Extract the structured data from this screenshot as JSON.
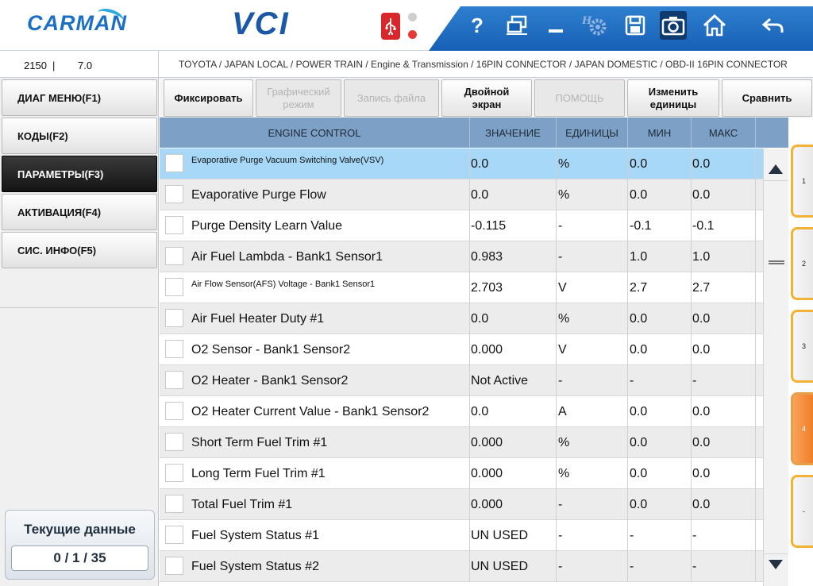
{
  "header": {
    "logo": "CARMAN",
    "app_title": "VCI",
    "toolbar_icons": [
      "usb-icon",
      "help-icon",
      "window-icon",
      "minimize-icon",
      "settings-icon",
      "save-icon",
      "camera-icon",
      "home-icon",
      "back-icon"
    ],
    "help_label": "?"
  },
  "info": {
    "code": "2150",
    "separator": "|",
    "version": "7.0",
    "breadcrumb": "TOYOTA / JAPAN LOCAL / POWER TRAIN / Engine & Transmission / 16PIN CONNECTOR / JAPAN DOMESTIC / OBD-II 16PIN CONNECTOR"
  },
  "nav": {
    "items": [
      {
        "label": "ДИАГ МЕНЮ(F1)",
        "active": false
      },
      {
        "label": "КОДЫ(F2)",
        "active": false
      },
      {
        "label": "ПАРАМЕТРЫ(F3)",
        "active": true
      },
      {
        "label": "АКТИВАЦИЯ(F4)",
        "active": false
      },
      {
        "label": "СИС. ИНФО(F5)",
        "active": false
      }
    ],
    "current_title": "Текущие данные",
    "current_count": "0 / 1 / 35"
  },
  "actions": {
    "fix": "Фиксировать",
    "graph_line1": "Графический",
    "graph_line2": "режим",
    "record": "Запись файла",
    "double_line1": "Двойной",
    "double_line2": "экран",
    "help": "ПОМОЩЬ",
    "units_line1": "Изменить",
    "units_line2": "единицы",
    "compare": "Сравнить"
  },
  "table": {
    "headers": {
      "name": "ENGINE CONTROL",
      "value": "ЗНАЧЕНИЕ",
      "units": "ЕДИНИЦЫ",
      "min": "МИН",
      "max": "МАКС"
    },
    "rows": [
      {
        "name": "Evaporative Purge Vacuum Switching Valve(VSV)",
        "value": "0.0",
        "units": "%",
        "min": "0.0",
        "max": "0.0"
      },
      {
        "name": "Evaporative Purge Flow",
        "value": "0.0",
        "units": "%",
        "min": "0.0",
        "max": "0.0"
      },
      {
        "name": "Purge Density Learn Value",
        "value": "-0.115",
        "units": "-",
        "min": "-0.1",
        "max": "-0.1"
      },
      {
        "name": "Air Fuel Lambda - Bank1 Sensor1",
        "value": "0.983",
        "units": "-",
        "min": "1.0",
        "max": "1.0"
      },
      {
        "name": "Air Flow Sensor(AFS) Voltage - Bank1 Sensor1",
        "value": "2.703",
        "units": "V",
        "min": "2.7",
        "max": "2.7"
      },
      {
        "name": "Air Fuel Heater Duty #1",
        "value": "0.0",
        "units": "%",
        "min": "0.0",
        "max": "0.0"
      },
      {
        "name": "O2 Sensor - Bank1 Sensor2",
        "value": "0.000",
        "units": "V",
        "min": "0.0",
        "max": "0.0"
      },
      {
        "name": "O2 Heater - Bank1 Sensor2",
        "value": "Not Active",
        "units": "-",
        "min": "-",
        "max": "-"
      },
      {
        "name": "O2 Heater Current Value - Bank1 Sensor2",
        "value": "0.0",
        "units": "A",
        "min": "0.0",
        "max": "0.0"
      },
      {
        "name": "Short Term Fuel Trim #1",
        "value": "0.000",
        "units": "%",
        "min": "0.0",
        "max": "0.0"
      },
      {
        "name": "Long Term Fuel Trim #1",
        "value": "0.000",
        "units": "%",
        "min": "0.0",
        "max": "0.0"
      },
      {
        "name": "Total Fuel Trim #1",
        "value": "0.000",
        "units": "-",
        "min": "0.0",
        "max": "0.0"
      },
      {
        "name": "Fuel System Status #1",
        "value": "UN USED",
        "units": "-",
        "min": "-",
        "max": "-"
      },
      {
        "name": "Fuel System Status #2",
        "value": "UN USED",
        "units": "-",
        "min": "-",
        "max": "-"
      }
    ]
  },
  "page_tabs": [
    {
      "label": "1",
      "active": false
    },
    {
      "label": "2",
      "active": false
    },
    {
      "label": "3",
      "active": false
    },
    {
      "label": "4",
      "active": true
    },
    {
      "label": "-",
      "active": false
    }
  ],
  "colors": {
    "brand_blue": "#1b58a8",
    "header_bar": "#7da0c6",
    "selected_row": "#a7d8f7",
    "tab_orange": "#ef7b22"
  }
}
